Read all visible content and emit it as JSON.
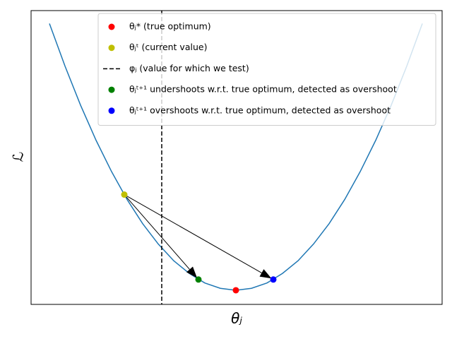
{
  "chart_data": {
    "type": "line",
    "x_label": "θⱼ",
    "y_label": "ℒ",
    "xlim": [
      -2.9,
      2.92
    ],
    "ylim": [
      -0.37,
      7.31
    ],
    "legend": "upper right",
    "series": [
      {
        "type": "line",
        "color": "#1f77b4",
        "x": [
          -2.64,
          -2.42,
          -2.2,
          -1.98,
          -1.76,
          -1.54,
          -1.32,
          -1.1,
          -0.88,
          -0.66,
          -0.44,
          -0.22,
          0,
          0.22,
          0.44,
          0.66,
          0.88,
          1.1,
          1.32,
          1.54,
          1.76,
          1.98,
          2.2,
          2.42,
          2.64
        ],
        "values": [
          6.97,
          5.86,
          4.84,
          3.92,
          3.1,
          2.37,
          1.74,
          1.21,
          0.77,
          0.44,
          0.19,
          0.05,
          0,
          0.05,
          0.19,
          0.44,
          0.77,
          1.21,
          1.74,
          2.37,
          3.1,
          3.92,
          4.84,
          5.86,
          6.97
        ]
      },
      {
        "type": "scatter",
        "name": "θⱼ* (true optimum)",
        "color": "#ff0000",
        "x": [
          0
        ],
        "values": [
          0
        ]
      },
      {
        "type": "scatter",
        "name": "θⱼᵗ (current value)",
        "color": "#bfbf00",
        "x": [
          -1.58
        ],
        "values": [
          2.5
        ]
      },
      {
        "type": "vline",
        "name": "φⱼ (value for which we test)",
        "color": "#000000",
        "x": [
          -1.05
        ]
      },
      {
        "type": "scatter",
        "name": "θⱼᵗ⁺¹ undershoots w.r.t. true optimum, detected as overshoot",
        "color": "#008000",
        "x": [
          -0.53
        ],
        "values": [
          0.28
        ]
      },
      {
        "type": "scatter",
        "name": "θⱼᵗ⁺¹ overshoots w.r.t. true optimum, detected as overshoot",
        "color": "#0000ff",
        "x": [
          0.53
        ],
        "values": [
          0.28
        ]
      }
    ]
  }
}
